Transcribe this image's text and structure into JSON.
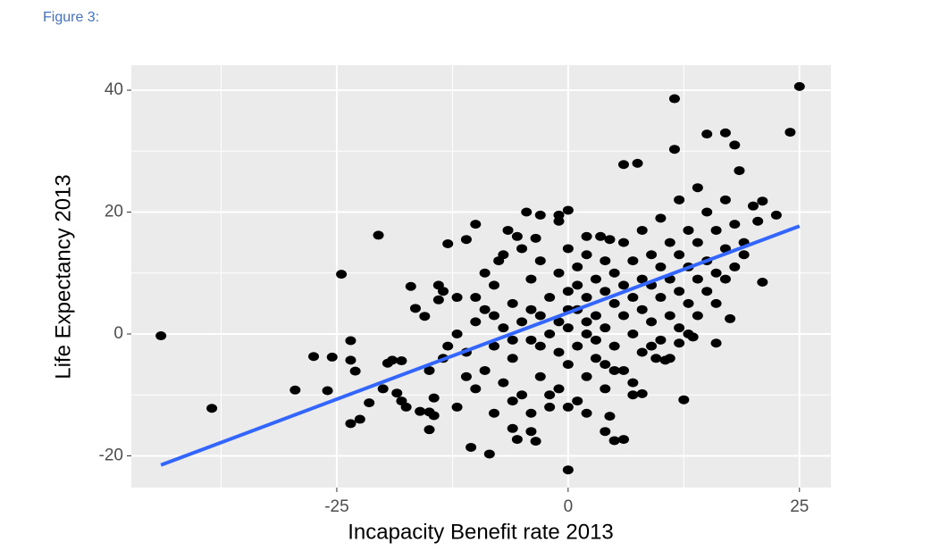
{
  "chart_data": {
    "type": "scatter",
    "title": "Figure 3:",
    "xlabel": "Incapacity Benefit rate 2013",
    "ylabel": "Life Expectancy 2013",
    "xlim": [
      -47.2,
      28.4
    ],
    "ylim": [
      -25.2,
      44.1
    ],
    "xticks": [
      -25,
      0,
      25
    ],
    "yticks": [
      -20,
      0,
      20,
      40
    ],
    "xminor": [
      -37.5,
      -12.5,
      12.5
    ],
    "yminor": [
      -10,
      10,
      30
    ],
    "grid": true,
    "color": "#000000",
    "x": [
      -44,
      -38.5,
      -29.5,
      -26,
      -27.5,
      -25.5,
      -24.5,
      -23.5,
      -23.5,
      -23,
      -23.5,
      -22.5,
      -21.5,
      -20.5,
      -20,
      -19.5,
      -19,
      -18,
      -18,
      -17.5,
      -18.5,
      -17,
      -16.5,
      -15.5,
      -16,
      -15,
      -14.5,
      -15,
      -14.5,
      -14,
      -14,
      -13.5,
      -13.5,
      -13,
      -12,
      -11,
      -10.5,
      -10,
      -8.5,
      -7.5,
      -6,
      -5.5,
      -4,
      -3.5,
      0,
      4,
      5,
      6,
      4.5,
      8,
      7,
      12.5,
      9.5,
      10.5,
      7.5,
      6,
      11.5,
      11.5,
      15,
      17,
      18,
      18.5,
      24,
      25,
      22.5,
      21,
      21,
      19,
      20.5,
      17.5,
      16,
      13.5,
      12,
      -3,
      -1,
      -1,
      0,
      -4.5,
      -6.5,
      -5.5,
      -3.5,
      2,
      3.5,
      4.5,
      -12,
      -11,
      -10,
      -9,
      -9,
      -8,
      -8,
      -7,
      -7,
      -6,
      -6,
      -5,
      -5,
      -4,
      -4,
      -3,
      -3,
      -3,
      -2,
      -2,
      -2,
      -1,
      -1,
      -1,
      0,
      0,
      0,
      0,
      1,
      1,
      1,
      1,
      2,
      2,
      2,
      2,
      3,
      3,
      3,
      4,
      4,
      4,
      4,
      5,
      5,
      5,
      6,
      6,
      6,
      6,
      7,
      7,
      7,
      8,
      8,
      8,
      8,
      9,
      9,
      9,
      10,
      10,
      10,
      10,
      11,
      11,
      11,
      12,
      12,
      12,
      12,
      13,
      13,
      13,
      14,
      14,
      14,
      14,
      15,
      15,
      15,
      16,
      16,
      16,
      17,
      17,
      17,
      18,
      18,
      19,
      20,
      -10,
      -8,
      -6,
      -4,
      -2,
      0,
      2,
      -11,
      -13,
      -15,
      -12,
      -9,
      -7,
      -5,
      -3,
      -1,
      1,
      3,
      5,
      7,
      9,
      11,
      13,
      -4,
      -6,
      -8,
      -10,
      0,
      2,
      4
    ],
    "values": [
      -0.3,
      -12.2,
      -9.2,
      -9.3,
      -3.7,
      -3.8,
      9.8,
      -1.1,
      -4.3,
      -6.1,
      -14.7,
      -14,
      -11.3,
      16.2,
      -9,
      -4.8,
      -4.3,
      -4.4,
      -11,
      -12,
      -9.7,
      7.8,
      4.2,
      2.9,
      -12.7,
      -12.8,
      -10.5,
      -15.7,
      -13.4,
      8,
      5.6,
      7,
      -4,
      14.8,
      -12,
      15.5,
      -18.6,
      18,
      -19.7,
      12,
      -15.5,
      -17.3,
      -16,
      -17.6,
      -22.3,
      -16,
      -17.5,
      -17.3,
      -13.5,
      -9.8,
      -10,
      -10.8,
      -4,
      -4.3,
      28,
      27.8,
      38.6,
      30.3,
      32.8,
      33,
      31,
      26.8,
      33.1,
      40.6,
      19.5,
      21.8,
      8.5,
      13,
      18.5,
      2.5,
      -1.5,
      -0.5,
      -1.5,
      19.5,
      18.5,
      19.5,
      20.3,
      20,
      17,
      16,
      15.7,
      16,
      16,
      15.5,
      0,
      -3,
      2,
      -6,
      4,
      -2,
      8,
      -8,
      1,
      5,
      -4,
      -10,
      2,
      9,
      -1,
      -7,
      3,
      12,
      -12,
      0,
      6,
      -9,
      -3,
      10,
      -5,
      1,
      7,
      14,
      -11,
      -2,
      4,
      11,
      -7,
      0,
      6,
      13,
      -4,
      3,
      9,
      -9,
      1,
      7,
      12,
      -2,
      5,
      10,
      -6,
      3,
      8,
      15,
      0,
      6,
      12,
      -3,
      4,
      9,
      17,
      2,
      8,
      13,
      -1,
      6,
      11,
      19,
      3,
      9,
      15,
      1,
      7,
      13,
      22,
      5,
      11,
      17,
      3,
      9,
      15,
      24,
      7,
      12,
      20,
      5,
      10,
      17,
      9,
      14,
      22,
      11,
      18,
      15,
      21,
      -9,
      -13,
      -11,
      -13,
      -10,
      -12,
      -13,
      -7,
      -2,
      -6,
      6,
      10,
      13,
      14,
      -2,
      2,
      8,
      -1,
      -6,
      -8,
      -2,
      -4,
      0,
      4,
      -1,
      3,
      6,
      4,
      2,
      -5
    ],
    "trend": {
      "x": [
        -44,
        25
      ],
      "values": [
        -21.5,
        17.7
      ],
      "color": "#3366ff"
    }
  }
}
